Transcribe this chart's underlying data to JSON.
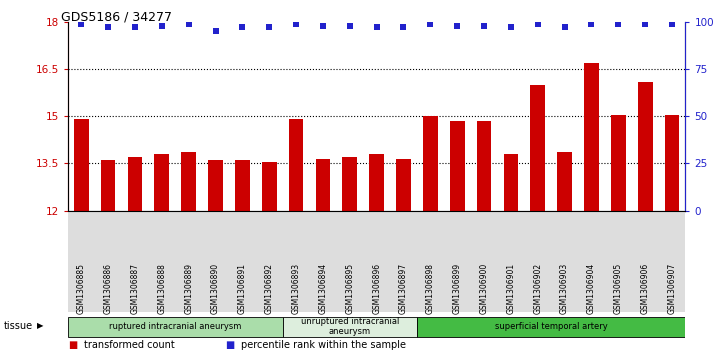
{
  "title": "GDS5186 / 34277",
  "samples": [
    "GSM1306885",
    "GSM1306886",
    "GSM1306887",
    "GSM1306888",
    "GSM1306889",
    "GSM1306890",
    "GSM1306891",
    "GSM1306892",
    "GSM1306893",
    "GSM1306894",
    "GSM1306895",
    "GSM1306896",
    "GSM1306897",
    "GSM1306898",
    "GSM1306899",
    "GSM1306900",
    "GSM1306901",
    "GSM1306902",
    "GSM1306903",
    "GSM1306904",
    "GSM1306905",
    "GSM1306906",
    "GSM1306907"
  ],
  "bar_values": [
    14.9,
    13.6,
    13.7,
    13.8,
    13.85,
    13.6,
    13.6,
    13.55,
    14.9,
    13.65,
    13.7,
    13.8,
    13.65,
    15.0,
    14.85,
    14.85,
    13.8,
    16.0,
    13.85,
    16.7,
    15.05,
    16.1,
    15.05
  ],
  "percentile_values": [
    99,
    97,
    97,
    98,
    99,
    95,
    97,
    97,
    99,
    98,
    98,
    97,
    97,
    99,
    98,
    98,
    97,
    99,
    97,
    99,
    99,
    99,
    99
  ],
  "bar_color": "#cc0000",
  "dot_color": "#2222cc",
  "ylim_left": [
    12,
    18
  ],
  "ylim_right": [
    0,
    100
  ],
  "yticks_left": [
    12,
    13.5,
    15,
    16.5,
    18
  ],
  "yticks_right": [
    0,
    25,
    50,
    75,
    100
  ],
  "ytick_labels_left": [
    "12",
    "13.5",
    "15",
    "16.5",
    "18"
  ],
  "ytick_labels_right": [
    "0",
    "25",
    "50",
    "75",
    "100%"
  ],
  "hlines": [
    13.5,
    15,
    16.5
  ],
  "groups": [
    {
      "label": "ruptured intracranial aneurysm",
      "start": 0,
      "end": 8,
      "color": "#aaddaa"
    },
    {
      "label": "unruptured intracranial\naneurysm",
      "start": 8,
      "end": 13,
      "color": "#ddeedd"
    },
    {
      "label": "superficial temporal artery",
      "start": 13,
      "end": 23,
      "color": "#44bb44"
    }
  ],
  "tissue_label": "tissue",
  "legend_items": [
    {
      "label": "transformed count",
      "color": "#cc0000"
    },
    {
      "label": "percentile rank within the sample",
      "color": "#2222cc"
    }
  ],
  "plot_bg_color": "#ffffff",
  "xtick_bg_color": "#dddddd"
}
